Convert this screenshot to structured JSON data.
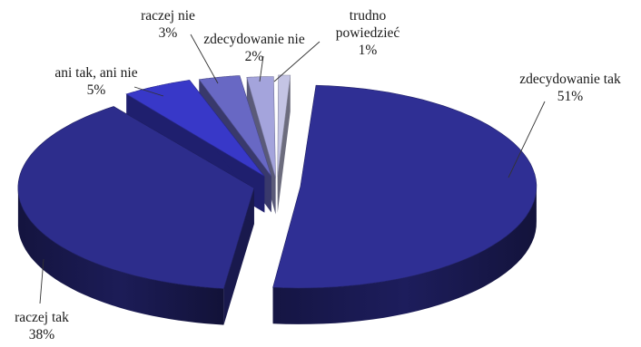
{
  "chart_data": {
    "type": "pie",
    "style": "3d-exploded",
    "title": "",
    "slices": [
      {
        "label": "zdecydowanie tak",
        "value": 51,
        "value_label": "51%",
        "color": "#2f2f94"
      },
      {
        "label": "raczej tak",
        "value": 38,
        "value_label": "38%",
        "color": "#2d2d8c"
      },
      {
        "label": "ani tak, ani nie",
        "value": 5,
        "value_label": "5%",
        "color": "#3838c8"
      },
      {
        "label": "raczej nie",
        "value": 3,
        "value_label": "3%",
        "color": "#6868c4"
      },
      {
        "label": "zdecydowanie nie",
        "value": 2,
        "value_label": "2%",
        "color": "#a4a4dc"
      },
      {
        "label": "trudno powiedzieć",
        "label_lines": [
          "trudno",
          "powiedzieć"
        ],
        "value": 1,
        "value_label": "1%",
        "color": "#c4c4e4"
      }
    ]
  }
}
